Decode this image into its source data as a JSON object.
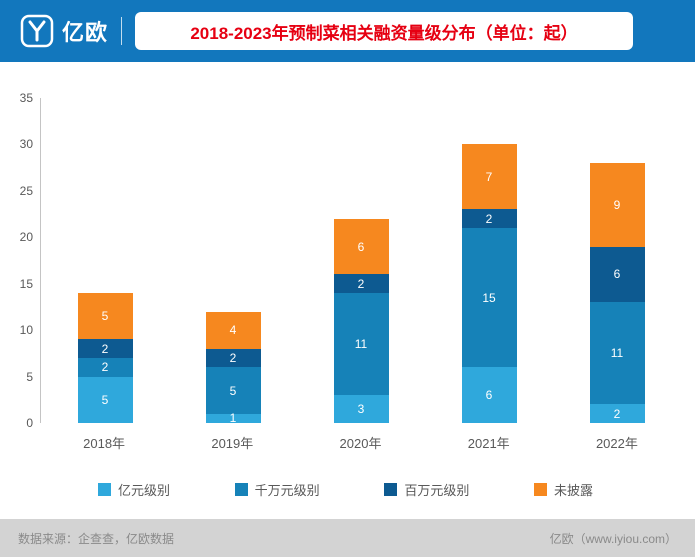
{
  "header": {
    "logo_text": "亿欧",
    "title": "2018-2023年预制菜相关融资量级分布（单位：起）"
  },
  "colors": {
    "header_bg": "#1277bd",
    "title_text": "#e60012",
    "footer_bg": "#d3d3d3"
  },
  "chart_data": {
    "type": "bar",
    "stacked": true,
    "title": "2018-2023年预制菜相关融资量级分布（单位：起）",
    "categories": [
      "2018年",
      "2019年",
      "2020年",
      "2021年",
      "2022年"
    ],
    "series": [
      {
        "name": "亿元级别",
        "color": "#2fa8dc",
        "values": [
          5,
          1,
          3,
          6,
          2
        ]
      },
      {
        "name": "千万元级别",
        "color": "#1682b8",
        "values": [
          2,
          5,
          11,
          15,
          11
        ]
      },
      {
        "name": "百万元级别",
        "color": "#0d5a91",
        "values": [
          2,
          2,
          2,
          2,
          6
        ]
      },
      {
        "name": "未披露",
        "color": "#f6881f",
        "values": [
          5,
          4,
          6,
          7,
          9
        ]
      }
    ],
    "totals": [
      14,
      12,
      22,
      30,
      28
    ],
    "xlabel": "",
    "ylabel": "",
    "ylim": [
      0,
      35
    ],
    "yticks": [
      0,
      5,
      10,
      15,
      20,
      25,
      30,
      35
    ],
    "grid": false,
    "legend_position": "bottom",
    "value_labels": "inside-white"
  },
  "footer": {
    "source": "数据来源：企查查，亿欧数据",
    "site": "亿欧（www.iyiou.com）"
  }
}
